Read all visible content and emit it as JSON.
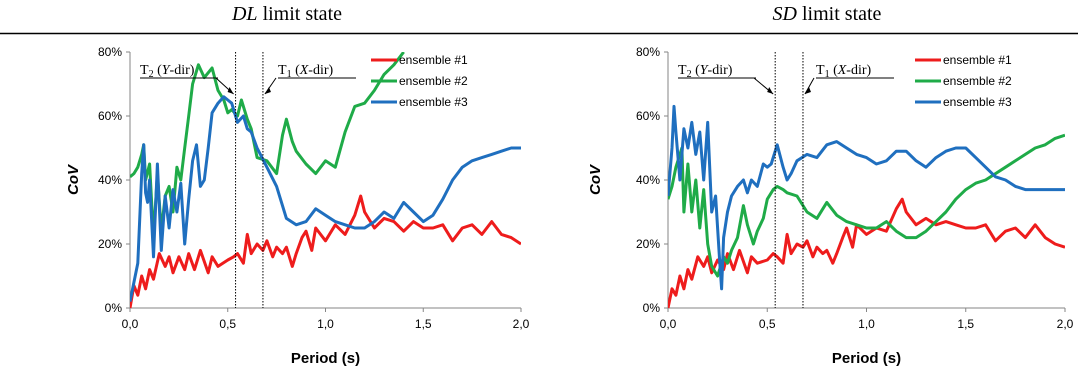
{
  "figure": {
    "left_title_prefix": "DL",
    "left_title_suffix": " limit state",
    "right_title_prefix": "SD",
    "right_title_suffix": " limit state"
  },
  "chart_data": [
    {
      "type": "line",
      "title": "DL limit state",
      "xlabel": "Period (s)",
      "ylabel": "CoV",
      "xlim": [
        0,
        2.0
      ],
      "ylim": [
        0,
        80
      ],
      "xticks": [
        "0,0",
        "0,5",
        "1,0",
        "1,5",
        "2,0"
      ],
      "yticks": [
        "0%",
        "20%",
        "40%",
        "60%",
        "80%"
      ],
      "x_tick_values": [
        0,
        0.5,
        1.0,
        1.5,
        2.0
      ],
      "y_tick_values": [
        0,
        20,
        40,
        60,
        80
      ],
      "legend_position": "top-right",
      "grid": false,
      "annotations": [
        {
          "label_prefix": "T",
          "label_sub": "2",
          "label_paren_open": " (",
          "label_axis": "Y",
          "label_rest": "-dir)",
          "x": 0.54
        },
        {
          "label_prefix": "T",
          "label_sub": "1",
          "label_paren_open": " (",
          "label_axis": "X",
          "label_rest": "-dir)",
          "x": 0.68
        }
      ],
      "series": [
        {
          "name": "ensemble #1",
          "color": "#ee1c1c",
          "x": [
            0.0,
            0.02,
            0.04,
            0.06,
            0.08,
            0.1,
            0.12,
            0.15,
            0.18,
            0.2,
            0.22,
            0.25,
            0.28,
            0.3,
            0.33,
            0.36,
            0.4,
            0.42,
            0.45,
            0.5,
            0.53,
            0.55,
            0.58,
            0.6,
            0.62,
            0.65,
            0.68,
            0.7,
            0.73,
            0.75,
            0.78,
            0.8,
            0.83,
            0.85,
            0.88,
            0.9,
            0.93,
            0.95,
            1.0,
            1.05,
            1.1,
            1.15,
            1.18,
            1.2,
            1.25,
            1.3,
            1.35,
            1.4,
            1.45,
            1.5,
            1.55,
            1.6,
            1.65,
            1.7,
            1.75,
            1.8,
            1.85,
            1.9,
            1.95,
            2.0
          ],
          "y": [
            0,
            7,
            4,
            10,
            6,
            12,
            9,
            17,
            13,
            16,
            11,
            16,
            12,
            17,
            12,
            18,
            11,
            16,
            13,
            15,
            16,
            17,
            14,
            23,
            17,
            20,
            18,
            21,
            16,
            19,
            17,
            19,
            13,
            17,
            22,
            24,
            18,
            25,
            21,
            26,
            23,
            29,
            35,
            30,
            25,
            28,
            27,
            24,
            27,
            25,
            25,
            26,
            21,
            25,
            26,
            23,
            27,
            23,
            22,
            20
          ]
        },
        {
          "name": "ensemble #2",
          "color": "#1fab48",
          "x": [
            0.0,
            0.02,
            0.04,
            0.06,
            0.07,
            0.08,
            0.1,
            0.12,
            0.14,
            0.16,
            0.18,
            0.2,
            0.22,
            0.24,
            0.26,
            0.28,
            0.3,
            0.32,
            0.35,
            0.38,
            0.42,
            0.45,
            0.48,
            0.5,
            0.52,
            0.55,
            0.57,
            0.6,
            0.62,
            0.65,
            0.7,
            0.75,
            0.78,
            0.8,
            0.83,
            0.85,
            0.9,
            0.95,
            1.0,
            1.05,
            1.1,
            1.15,
            1.2,
            1.25,
            1.3,
            1.35,
            1.4
          ],
          "y": [
            41,
            42,
            44,
            48,
            51,
            40,
            45,
            22,
            42,
            24,
            35,
            38,
            30,
            44,
            40,
            50,
            60,
            70,
            76,
            72,
            75,
            68,
            65,
            61,
            62,
            60,
            65,
            59,
            56,
            47,
            46,
            42,
            54,
            59,
            52,
            49,
            45,
            42,
            46,
            44,
            55,
            63,
            64,
            68,
            73,
            76,
            80
          ]
        },
        {
          "name": "ensemble #3",
          "color": "#1f6fbf",
          "x": [
            0.0,
            0.02,
            0.04,
            0.06,
            0.07,
            0.08,
            0.09,
            0.1,
            0.12,
            0.14,
            0.16,
            0.18,
            0.2,
            0.22,
            0.24,
            0.26,
            0.28,
            0.3,
            0.32,
            0.34,
            0.36,
            0.38,
            0.4,
            0.42,
            0.45,
            0.48,
            0.5,
            0.52,
            0.55,
            0.58,
            0.6,
            0.62,
            0.65,
            0.7,
            0.75,
            0.8,
            0.85,
            0.9,
            0.95,
            1.0,
            1.05,
            1.1,
            1.15,
            1.2,
            1.25,
            1.3,
            1.35,
            1.4,
            1.45,
            1.5,
            1.55,
            1.6,
            1.65,
            1.7,
            1.75,
            1.8,
            1.85,
            1.9,
            1.95,
            2.0
          ],
          "y": [
            2,
            8,
            14,
            42,
            51,
            36,
            33,
            40,
            16,
            45,
            18,
            35,
            25,
            37,
            30,
            39,
            20,
            34,
            46,
            51,
            38,
            40,
            50,
            61,
            64,
            66,
            65,
            64,
            58,
            60,
            56,
            55,
            50,
            44,
            38,
            28,
            26,
            27,
            31,
            29,
            27,
            26,
            25,
            25,
            27,
            30,
            28,
            33,
            30,
            27,
            29,
            34,
            40,
            44,
            46,
            47,
            48,
            49,
            50,
            50
          ]
        }
      ]
    },
    {
      "type": "line",
      "title": "SD limit state",
      "xlabel": "Period (s)",
      "ylabel": "CoV",
      "xlim": [
        0,
        2.0
      ],
      "ylim": [
        0,
        80
      ],
      "xticks": [
        "0,0",
        "0,5",
        "1,0",
        "1,5",
        "2,0"
      ],
      "yticks": [
        "0%",
        "20%",
        "40%",
        "60%",
        "80%"
      ],
      "x_tick_values": [
        0,
        0.5,
        1.0,
        1.5,
        2.0
      ],
      "y_tick_values": [
        0,
        20,
        40,
        60,
        80
      ],
      "legend_position": "top-right",
      "grid": false,
      "annotations": [
        {
          "label_prefix": "T",
          "label_sub": "2",
          "label_paren_open": " (",
          "label_axis": "Y",
          "label_rest": "-dir)",
          "x": 0.54
        },
        {
          "label_prefix": "T",
          "label_sub": "1",
          "label_paren_open": " (",
          "label_axis": "X",
          "label_rest": "-dir)",
          "x": 0.68
        }
      ],
      "series": [
        {
          "name": "ensemble #1",
          "color": "#ee1c1c",
          "x": [
            0.0,
            0.02,
            0.04,
            0.06,
            0.08,
            0.1,
            0.12,
            0.15,
            0.18,
            0.2,
            0.22,
            0.25,
            0.28,
            0.3,
            0.33,
            0.36,
            0.4,
            0.42,
            0.45,
            0.5,
            0.53,
            0.55,
            0.58,
            0.6,
            0.62,
            0.65,
            0.68,
            0.7,
            0.73,
            0.75,
            0.78,
            0.8,
            0.83,
            0.85,
            0.88,
            0.9,
            0.93,
            0.95,
            1.0,
            1.05,
            1.1,
            1.15,
            1.18,
            1.2,
            1.25,
            1.3,
            1.35,
            1.4,
            1.45,
            1.5,
            1.55,
            1.6,
            1.65,
            1.7,
            1.75,
            1.8,
            1.85,
            1.9,
            1.95,
            2.0
          ],
          "y": [
            0,
            6,
            4,
            10,
            6,
            12,
            9,
            16,
            13,
            16,
            11,
            15,
            12,
            17,
            12,
            18,
            11,
            16,
            14,
            15,
            17,
            16,
            14,
            23,
            17,
            20,
            19,
            21,
            16,
            19,
            17,
            18,
            14,
            17,
            22,
            25,
            19,
            26,
            23,
            25,
            24,
            31,
            34,
            30,
            26,
            28,
            26,
            27,
            26,
            25,
            25,
            26,
            21,
            24,
            25,
            22,
            26,
            22,
            20,
            19
          ]
        },
        {
          "name": "ensemble #2",
          "color": "#1fab48",
          "x": [
            0.0,
            0.02,
            0.04,
            0.06,
            0.07,
            0.08,
            0.1,
            0.12,
            0.14,
            0.16,
            0.18,
            0.2,
            0.22,
            0.25,
            0.28,
            0.3,
            0.32,
            0.35,
            0.38,
            0.4,
            0.43,
            0.45,
            0.48,
            0.5,
            0.53,
            0.55,
            0.58,
            0.6,
            0.65,
            0.7,
            0.75,
            0.8,
            0.85,
            0.9,
            0.95,
            1.0,
            1.05,
            1.1,
            1.15,
            1.2,
            1.25,
            1.3,
            1.35,
            1.4,
            1.45,
            1.5,
            1.55,
            1.6,
            1.65,
            1.7,
            1.75,
            1.8,
            1.85,
            1.9,
            1.95,
            2.0
          ],
          "y": [
            34,
            38,
            44,
            48,
            50,
            30,
            45,
            30,
            40,
            25,
            37,
            20,
            13,
            10,
            16,
            14,
            18,
            22,
            32,
            26,
            20,
            24,
            28,
            34,
            37,
            38,
            37,
            36,
            35,
            30,
            28,
            33,
            29,
            27,
            26,
            25,
            25,
            27,
            24,
            22,
            22,
            24,
            27,
            30,
            34,
            37,
            39,
            40,
            42,
            44,
            46,
            48,
            50,
            51,
            53,
            54
          ]
        },
        {
          "name": "ensemble #3",
          "color": "#1f6fbf",
          "x": [
            0.0,
            0.02,
            0.03,
            0.04,
            0.06,
            0.08,
            0.1,
            0.12,
            0.14,
            0.16,
            0.18,
            0.2,
            0.22,
            0.24,
            0.26,
            0.27,
            0.28,
            0.3,
            0.32,
            0.35,
            0.38,
            0.4,
            0.42,
            0.45,
            0.48,
            0.5,
            0.52,
            0.55,
            0.58,
            0.6,
            0.62,
            0.65,
            0.7,
            0.75,
            0.8,
            0.85,
            0.9,
            0.95,
            1.0,
            1.05,
            1.1,
            1.15,
            1.2,
            1.25,
            1.3,
            1.35,
            1.4,
            1.45,
            1.5,
            1.55,
            1.6,
            1.65,
            1.7,
            1.75,
            1.8,
            1.85,
            1.9,
            1.95,
            2.0
          ],
          "y": [
            35,
            50,
            63,
            55,
            40,
            56,
            50,
            58,
            48,
            55,
            40,
            58,
            30,
            35,
            15,
            6,
            22,
            30,
            35,
            38,
            40,
            36,
            40,
            38,
            45,
            44,
            45,
            51,
            44,
            40,
            42,
            46,
            48,
            47,
            51,
            52,
            50,
            48,
            47,
            45,
            46,
            49,
            49,
            46,
            44,
            47,
            49,
            50,
            50,
            47,
            44,
            41,
            40,
            38,
            37,
            37,
            37,
            37,
            37
          ]
        }
      ]
    }
  ]
}
